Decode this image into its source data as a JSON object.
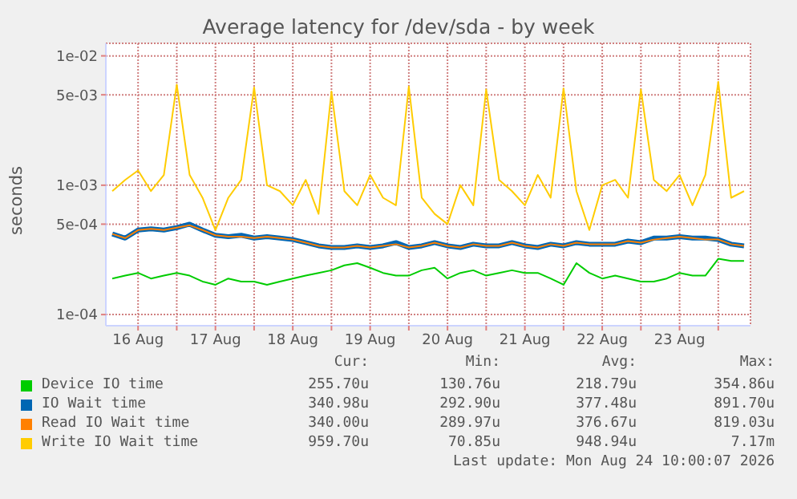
{
  "chart_data": {
    "type": "line",
    "title": "Average latency for /dev/sda - by week",
    "ylabel": "seconds",
    "log": "y",
    "grid": true,
    "legend": "bottom",
    "marker": "none",
    "line_style": "solid",
    "x": [
      "2026-08-16T04:00",
      "2026-08-16T08:00",
      "2026-08-16T12:00",
      "2026-08-16T16:00",
      "2026-08-16T20:00",
      "2026-08-17T00:00",
      "2026-08-17T04:00",
      "2026-08-17T08:00",
      "2026-08-17T12:00",
      "2026-08-17T16:00",
      "2026-08-17T20:00",
      "2026-08-18T00:00",
      "2026-08-18T04:00",
      "2026-08-18T08:00",
      "2026-08-18T12:00",
      "2026-08-18T16:00",
      "2026-08-18T20:00",
      "2026-08-19T00:00",
      "2026-08-19T04:00",
      "2026-08-19T08:00",
      "2026-08-19T12:00",
      "2026-08-19T16:00",
      "2026-08-19T20:00",
      "2026-08-20T00:00",
      "2026-08-20T04:00",
      "2026-08-20T08:00",
      "2026-08-20T12:00",
      "2026-08-20T16:00",
      "2026-08-20T20:00",
      "2026-08-21T00:00",
      "2026-08-21T04:00",
      "2026-08-21T08:00",
      "2026-08-21T12:00",
      "2026-08-21T16:00",
      "2026-08-21T20:00",
      "2026-08-22T00:00",
      "2026-08-22T04:00",
      "2026-08-22T08:00",
      "2026-08-22T12:00",
      "2026-08-22T16:00",
      "2026-08-22T20:00",
      "2026-08-23T00:00",
      "2026-08-23T04:00",
      "2026-08-23T08:00",
      "2026-08-23T12:00",
      "2026-08-23T16:00",
      "2026-08-23T20:00",
      "2026-08-24T00:00",
      "2026-08-24T04:00",
      "2026-08-24T08:00"
    ],
    "xlim": [
      "2026-08-16T02:00",
      "2026-08-24T10:00"
    ],
    "xticks": [
      {
        "value": "2026-08-16T12:00",
        "label": "16 Aug"
      },
      {
        "value": "2026-08-17T00:00",
        "label": null
      },
      {
        "value": "2026-08-17T12:00",
        "label": "17 Aug"
      },
      {
        "value": "2026-08-18T00:00",
        "label": null
      },
      {
        "value": "2026-08-18T12:00",
        "label": "18 Aug"
      },
      {
        "value": "2026-08-19T00:00",
        "label": null
      },
      {
        "value": "2026-08-19T12:00",
        "label": "19 Aug"
      },
      {
        "value": "2026-08-20T00:00",
        "label": null
      },
      {
        "value": "2026-08-20T12:00",
        "label": "20 Aug"
      },
      {
        "value": "2026-08-21T00:00",
        "label": null
      },
      {
        "value": "2026-08-21T12:00",
        "label": "21 Aug"
      },
      {
        "value": "2026-08-22T00:00",
        "label": null
      },
      {
        "value": "2026-08-22T12:00",
        "label": "22 Aug"
      },
      {
        "value": "2026-08-23T00:00",
        "label": null
      },
      {
        "value": "2026-08-23T12:00",
        "label": "23 Aug"
      },
      {
        "value": "2026-08-24T00:00",
        "label": null
      }
    ],
    "ylim": [
      8.2e-05,
      0.0125
    ],
    "yticks": [
      {
        "value": 0.0001,
        "label": "1e-04"
      },
      {
        "value": 0.0005,
        "label": "5e-04"
      },
      {
        "value": 0.001,
        "label": "1e-03"
      },
      {
        "value": 0.005,
        "label": "5e-03"
      },
      {
        "value": 0.01,
        "label": "1e-02"
      }
    ],
    "series": [
      {
        "name": "Device IO time",
        "color": "#00cc00",
        "values": [
          0.00019,
          0.0002,
          0.00021,
          0.00019,
          0.0002,
          0.00021,
          0.0002,
          0.00018,
          0.00017,
          0.00019,
          0.00018,
          0.00018,
          0.00017,
          0.00018,
          0.00019,
          0.0002,
          0.00021,
          0.00022,
          0.00024,
          0.00025,
          0.00023,
          0.00021,
          0.0002,
          0.0002,
          0.00022,
          0.00023,
          0.00019,
          0.00021,
          0.00022,
          0.0002,
          0.00021,
          0.00022,
          0.00021,
          0.00021,
          0.00019,
          0.00017,
          0.00025,
          0.00021,
          0.00019,
          0.0002,
          0.00019,
          0.00018,
          0.00018,
          0.00019,
          0.00021,
          0.0002,
          0.0002,
          0.00027,
          0.00026,
          0.00026
        ]
      },
      {
        "name": "IO Wait time",
        "color": "#0066b3",
        "values": [
          0.00042,
          0.00039,
          0.00045,
          0.00046,
          0.00045,
          0.00047,
          0.0005,
          0.00045,
          0.00041,
          0.0004,
          0.00041,
          0.00039,
          0.0004,
          0.00039,
          0.00038,
          0.00036,
          0.00034,
          0.00033,
          0.00033,
          0.00034,
          0.00033,
          0.00034,
          0.00036,
          0.00033,
          0.00034,
          0.00036,
          0.00034,
          0.00033,
          0.00035,
          0.00034,
          0.00034,
          0.00036,
          0.00034,
          0.00033,
          0.00035,
          0.00034,
          0.00036,
          0.00035,
          0.00035,
          0.00035,
          0.00037,
          0.00036,
          0.00039,
          0.00039,
          0.0004,
          0.00039,
          0.00039,
          0.00038,
          0.00035,
          0.00034
        ]
      },
      {
        "name": "Read IO Wait time",
        "color": "#ff8000",
        "values": [
          0.00042,
          0.00039,
          0.00045,
          0.00046,
          0.00045,
          0.00047,
          0.00049,
          0.00045,
          0.00041,
          0.0004,
          0.0004,
          0.00039,
          0.0004,
          0.00039,
          0.00038,
          0.00036,
          0.00034,
          0.00033,
          0.00033,
          0.00034,
          0.00033,
          0.00034,
          0.00035,
          0.00033,
          0.00034,
          0.00036,
          0.00034,
          0.00033,
          0.00035,
          0.00034,
          0.00034,
          0.00036,
          0.00034,
          0.00033,
          0.00035,
          0.00034,
          0.00036,
          0.00035,
          0.00035,
          0.00035,
          0.00037,
          0.00036,
          0.00038,
          0.00039,
          0.0004,
          0.00039,
          0.00038,
          0.00038,
          0.00035,
          0.00034
        ]
      },
      {
        "name": "Write IO Wait time",
        "color": "#ffcc00",
        "values": [
          0.0009,
          0.0011,
          0.0013,
          0.0009,
          0.0012,
          0.006,
          0.0012,
          0.0008,
          0.00045,
          0.0008,
          0.0011,
          0.0057,
          0.001,
          0.0009,
          0.0007,
          0.0011,
          0.0006,
          0.0053,
          0.0009,
          0.0007,
          0.0012,
          0.0008,
          0.0007,
          0.0058,
          0.0008,
          0.0006,
          0.0005,
          0.001,
          0.0007,
          0.0055,
          0.0011,
          0.0009,
          0.0007,
          0.0012,
          0.0008,
          0.0056,
          0.0009,
          0.00045,
          0.001,
          0.0011,
          0.0008,
          0.0055,
          0.0011,
          0.0009,
          0.0012,
          0.0007,
          0.0012,
          0.0063,
          0.0008,
          0.0009
        ]
      }
    ],
    "annotations": [
      "Cur:",
      "Min:",
      "Avg:",
      "Max:",
      "255.70u",
      "130.76u",
      "218.79u",
      "354.86u",
      "340.98u",
      "292.90u",
      "377.48u",
      "891.70u",
      "340.00u",
      "289.97u",
      "376.67u",
      "819.03u",
      "959.70u",
      "70.85u",
      "948.94u",
      "7.17m",
      "Last update: Mon Aug 24 10:00:07 2026"
    ]
  }
}
